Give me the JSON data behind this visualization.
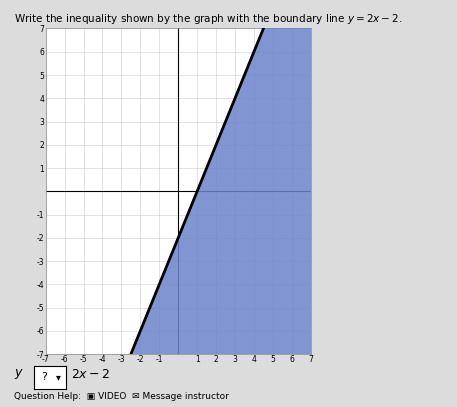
{
  "title": "Write the inequality shown by the graph with the boundary line $y = 2x - 2$.",
  "xlim": [
    -7,
    7
  ],
  "ylim": [
    -7,
    7
  ],
  "boundary_slope": 2,
  "boundary_intercept": -2,
  "shade_color": "#6b83cc",
  "shade_alpha": 0.85,
  "line_color": "#000000",
  "line_width": 2.0,
  "grid_color": "#bbbbbb",
  "grid_alpha": 0.6,
  "fig_bg_color": "#dcdcdc",
  "plot_bg_color": "#ffffff",
  "fig_width": 4.57,
  "fig_height": 4.07,
  "dpi": 100
}
